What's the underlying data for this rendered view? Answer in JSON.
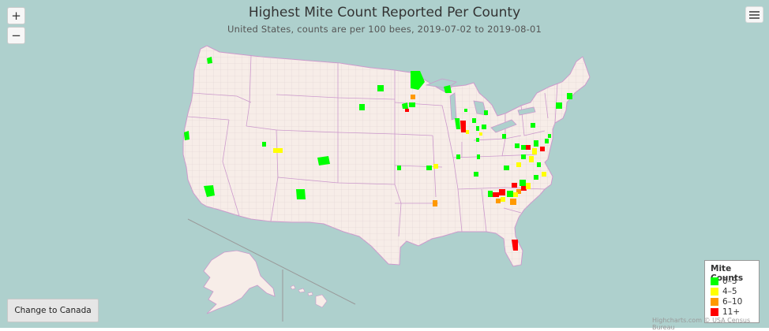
{
  "title": "Highest Mite Count Reported Per County",
  "subtitle": "United States, counts are per 100 bees, 2019-07-02 to 2019-08-01",
  "zoom": {
    "in_label": "+",
    "out_label": "−"
  },
  "menu_icon": "hamburger-menu-icon",
  "legend": {
    "title": "Mite Counts",
    "items": [
      {
        "label": "0–3",
        "color": "#00ff00"
      },
      {
        "label": "4–5",
        "color": "#ffff00"
      },
      {
        "label": "6–10",
        "color": "#ff9900"
      },
      {
        "label": "11+",
        "color": "#ff0000"
      }
    ]
  },
  "change_button": "Change to Canada",
  "credits": "Highcharts.com © USA Census Bureau",
  "colors": {
    "ocean": "#aed0cd",
    "land": "#f7ede8",
    "county_border": "#e0d2d2",
    "state_border": "#cc99cc"
  }
}
